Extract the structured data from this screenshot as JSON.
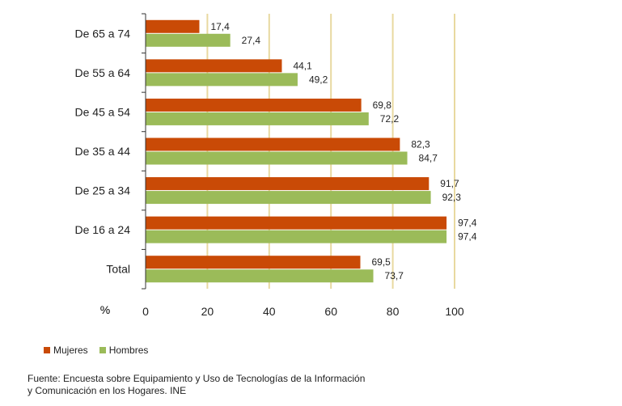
{
  "chart_data": {
    "type": "bar",
    "orientation": "horizontal",
    "categories": [
      "De 65 a 74",
      "De 55 a 64",
      "De 45 a 54",
      "De 35 a 44",
      "De 25 a 34",
      "De 16 a 24",
      "Total"
    ],
    "series": [
      {
        "name": "Mujeres",
        "color": "#c94a06",
        "values": [
          17.4,
          44.1,
          69.8,
          82.3,
          91.7,
          97.4,
          69.5
        ],
        "labels": [
          "17,4",
          "44,1",
          "69,8",
          "82,3",
          "91,7",
          "97,4",
          "69,5"
        ]
      },
      {
        "name": "Hombres",
        "color": "#9bbb59",
        "values": [
          27.4,
          49.2,
          72.2,
          84.7,
          92.3,
          97.4,
          73.7
        ],
        "labels": [
          "27,4",
          "49,2",
          "72,2",
          "84,7",
          "92,3",
          "97,4",
          "73,7"
        ]
      }
    ],
    "xlabel": "%",
    "xlim": [
      0,
      100
    ],
    "xticks": [
      0,
      20,
      40,
      60,
      80,
      100
    ],
    "gridline_color": "#e8d9a0",
    "grid": true,
    "legend_position": "bottom-left"
  },
  "source": {
    "line1": "Fuente: Encuesta sobre Equipamiento y Uso de Tecnologías de la Información",
    "line2": "y Comunicación en los Hogares. INE"
  }
}
